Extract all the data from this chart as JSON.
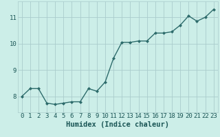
{
  "x": [
    0,
    1,
    2,
    3,
    4,
    5,
    6,
    7,
    8,
    9,
    10,
    11,
    12,
    13,
    14,
    15,
    16,
    17,
    18,
    19,
    20,
    21,
    22,
    23
  ],
  "y": [
    8.0,
    8.3,
    8.3,
    7.75,
    7.7,
    7.75,
    7.8,
    7.8,
    8.3,
    8.2,
    8.55,
    9.45,
    10.05,
    10.05,
    10.1,
    10.1,
    10.4,
    10.4,
    10.45,
    10.7,
    11.05,
    10.85,
    11.0,
    11.3
  ],
  "xlabel": "Humidex (Indice chaleur)",
  "xlim": [
    -0.5,
    23.5
  ],
  "ylim": [
    7.4,
    11.6
  ],
  "yticks": [
    8,
    9,
    10,
    11
  ],
  "xticks": [
    0,
    1,
    2,
    3,
    4,
    5,
    6,
    7,
    8,
    9,
    10,
    11,
    12,
    13,
    14,
    15,
    16,
    17,
    18,
    19,
    20,
    21,
    22,
    23
  ],
  "line_color": "#2d6b6b",
  "marker": "D",
  "marker_size": 2.0,
  "line_width": 1.0,
  "bg_color": "#cceee8",
  "grid_color": "#aacccc",
  "axis_label_color": "#1a5555",
  "tick_color": "#1a5555",
  "xlabel_fontsize": 7.5,
  "tick_fontsize": 6.5
}
